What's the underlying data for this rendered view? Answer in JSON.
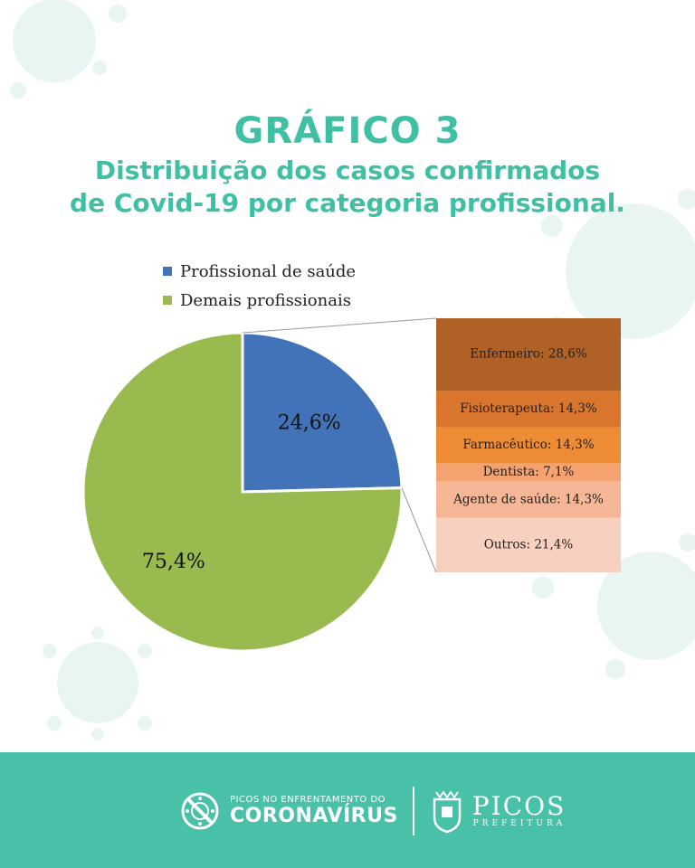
{
  "colors": {
    "accent": "#3fbfa3",
    "footer": "#49c1a8",
    "health": "#4273b8",
    "others": "#98ba4f"
  },
  "chart_data": [
    {
      "type": "pie",
      "title": "GRÁFICO 3",
      "subtitle": [
        "Distribuição dos casos confirmados",
        "de Covid-19 por categoria profissional."
      ],
      "legend": [
        "Profissional de saúde",
        "Demais profissionais"
      ],
      "legend_position": "top-left",
      "slices": [
        {
          "name": "Profissional de saúde",
          "value": 24.6,
          "label": "24,6%",
          "color": "#4273b8"
        },
        {
          "name": "Demais profissionais",
          "value": 75.4,
          "label": "75,4%",
          "color": "#98ba4f"
        }
      ]
    },
    {
      "type": "bar",
      "orientation": "stacked-vertical",
      "categories": [
        "Enfermeiro",
        "Fisioterapeuta",
        "Farmacêutico",
        "Dentista",
        "Agente de saúde",
        "Outros"
      ],
      "values": [
        28.6,
        14.3,
        14.3,
        7.1,
        14.3,
        21.4
      ],
      "labels": [
        "Enfermeiro: 28,6%",
        "Fisioterapeuta: 14,3%",
        "Farmacêutico: 14,3%",
        "Dentista: 7,1%",
        "Agente de saúde: 14,3%",
        "Outros: 21,4%"
      ],
      "colors": [
        "#b06125",
        "#d9752c",
        "#ee8b35",
        "#f4a270",
        "#f6b796",
        "#f8d0bf"
      ]
    }
  ],
  "footer": {
    "campaign_small": "PICOS NO ENFRENTAMENTO DO",
    "campaign_big": "CORONAVÍRUS",
    "city_name": "PICOS",
    "city_sub": "PREFEITURA",
    "icons": [
      "virus-crossed-icon",
      "city-crest-icon"
    ]
  }
}
